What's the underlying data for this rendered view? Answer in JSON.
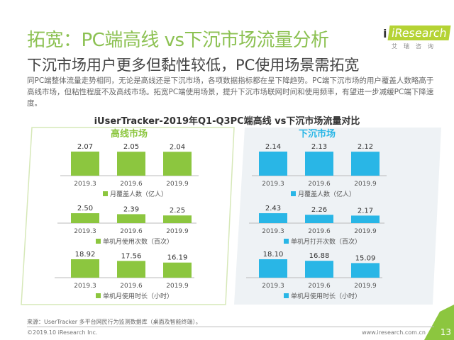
{
  "header": {
    "title": "拓宽：PC端高线 vs下沉市场流量分析",
    "subtitle": "下沉市场用户更多但黏性较低，PC使用场景需拓宽",
    "description": "同PC端整体流量走势相同，无论是高线还是下沉市场，各项数据指标都在呈下降趋势。PC端下沉市场的用户覆盖人数略高于高线市场，但粘性程度不及高线市场。拓宽PC端使用场景，提升下沉市场联网时间和使用频率，有望进一步减缓PC端下降速度。"
  },
  "logo": {
    "brand": "iResearch",
    "cn": "艾瑞咨询"
  },
  "colors": {
    "green": "#8cc63f",
    "blue": "#29b6e6",
    "title_green": "#8cc152"
  },
  "chart_data": {
    "type": "bar",
    "title": "iUserTracker-2019年Q1-Q3PC端高线 vs下沉市场流量对比",
    "categories": [
      "2019.3",
      "2019.6",
      "2019.9"
    ],
    "panels": [
      {
        "name": "高线市场",
        "color": "#8cc63f",
        "series": [
          {
            "name": "月覆盖人数（亿人）",
            "values": [
              2.07,
              2.05,
              2.04
            ]
          },
          {
            "name": "单机月使用次数（百次）",
            "values": [
              2.5,
              2.39,
              2.25
            ]
          },
          {
            "name": "单机月使用时长（小时）",
            "values": [
              18.92,
              17.56,
              16.19
            ]
          }
        ]
      },
      {
        "name": "下沉市场",
        "color": "#29b6e6",
        "series": [
          {
            "name": "月覆盖人数（亿人）",
            "values": [
              2.14,
              2.13,
              2.12
            ]
          },
          {
            "name": "单机月打开次数（百次）",
            "values": [
              2.43,
              2.26,
              2.17
            ]
          },
          {
            "name": "单机月使用时长（小时）",
            "values": [
              18.1,
              16.88,
              15.09
            ]
          }
        ]
      }
    ]
  },
  "footer": {
    "source": "来源：UserTracker 多平台网民行为监测数据库（桌面及智能终端）。",
    "copyright": "©2019.10 iResearch Inc.",
    "website": "www.iresearch.com.cn",
    "page": "13"
  }
}
